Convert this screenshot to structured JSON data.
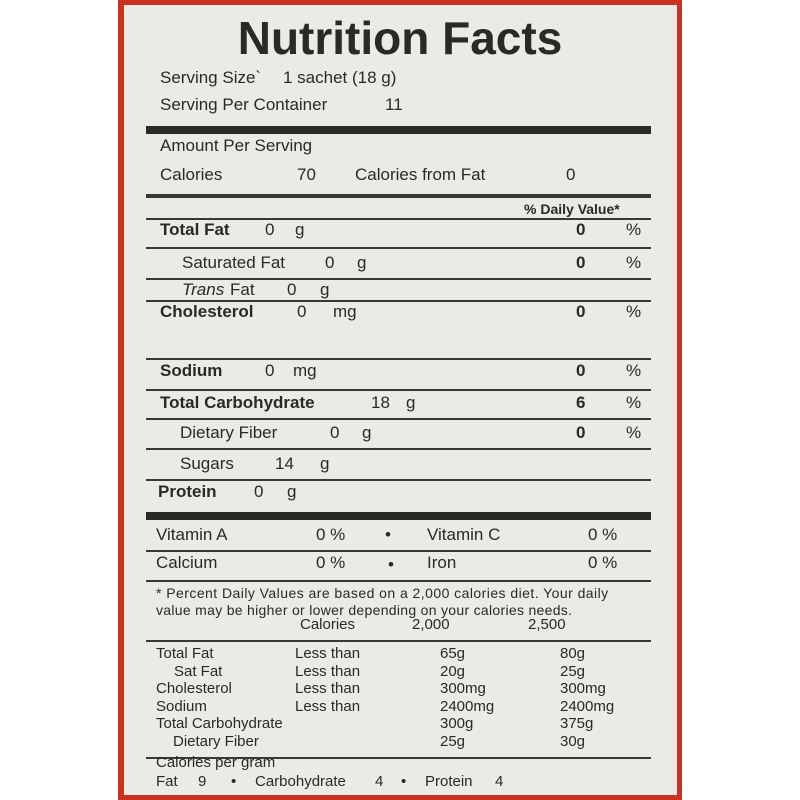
{
  "title": "Nutrition Facts",
  "serving": {
    "size_label": "Serving Size`",
    "size_value": "1 sachet (18 g)",
    "container_label": "Serving Per Container",
    "container_value": "11"
  },
  "amount_per_serving": "Amount Per Serving",
  "calories": {
    "label": "Calories",
    "value": "70",
    "fat_label": "Calories from Fat",
    "fat_value": "0"
  },
  "dv_header": "% Daily Value*",
  "nutrients": [
    {
      "name": "Total Fat",
      "amount": "0",
      "unit": "g",
      "dv": "0",
      "pct": "%"
    },
    {
      "name": "Saturated Fat",
      "amount": "0",
      "unit": "g",
      "dv": "0",
      "pct": "%"
    },
    {
      "name_italic": "Trans",
      "name": "Fat",
      "amount": "0",
      "unit": "g"
    },
    {
      "name": "Cholesterol",
      "amount": "0",
      "unit": "mg",
      "dv": "0",
      "pct": "%"
    },
    {
      "name": "Sodium",
      "amount": "0",
      "unit": "mg",
      "dv": "0",
      "pct": "%"
    },
    {
      "name": "Total Carbohydrate",
      "amount": "18",
      "unit": "g",
      "dv": "6",
      "pct": "%"
    },
    {
      "name": "Dietary Fiber",
      "amount": "0",
      "unit": "g",
      "dv": "0",
      "pct": "%"
    },
    {
      "name": "Sugars",
      "amount": "14",
      "unit": "g"
    },
    {
      "name": "Protein",
      "amount": "0",
      "unit": "g"
    }
  ],
  "vitamins": [
    {
      "name": "Vitamin A",
      "value": "0 %"
    },
    {
      "name": "Vitamin C",
      "value": "0 %"
    },
    {
      "name": "Calcium",
      "value": "0 %"
    },
    {
      "name": "Iron",
      "value": "0 %"
    }
  ],
  "bullet": "•",
  "footnote": [
    "* Percent Daily Values are based on a 2,000 calories diet. Your daily",
    "value may be higher or lower depending on your calories needs."
  ],
  "reference": {
    "header": [
      "Calories",
      "2,000",
      "2,500"
    ],
    "rows": [
      [
        "Total Fat",
        "Less than",
        "65g",
        "80g"
      ],
      [
        "Sat Fat",
        "Less than",
        "20g",
        "25g"
      ],
      [
        "Cholesterol",
        "Less than",
        "300mg",
        "300mg"
      ],
      [
        "Sodium",
        "Less than",
        "2400mg",
        "2400mg"
      ],
      [
        "Total Carbohydrate",
        "",
        "300g",
        "375g"
      ],
      [
        "Dietary Fiber",
        "",
        "25g",
        "30g"
      ]
    ]
  },
  "calories_per_gram": {
    "label": "Calories per gram",
    "fat": "Fat",
    "fat_value": "9",
    "carb": "Carbohydrate",
    "carb_value": "4",
    "protein": "Protein",
    "protein_value": "4"
  },
  "colors": {
    "border": "#c8321f",
    "panel": "#ebeae6",
    "ink": "#2b2926"
  }
}
